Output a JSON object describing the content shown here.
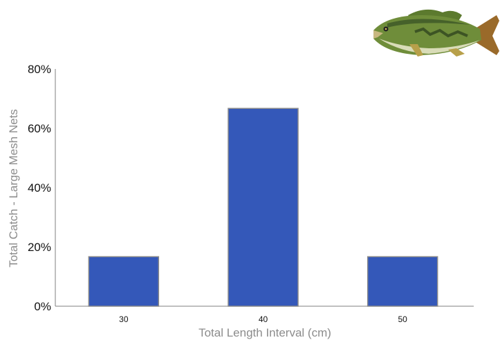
{
  "chart_data": {
    "type": "bar",
    "categories": [
      "30",
      "40",
      "50"
    ],
    "values": [
      16.7,
      66.7,
      16.7
    ],
    "xlabel": "Total Length Interval (cm)",
    "ylabel": "Total Catch - Large Mesh Nets",
    "ylim": [
      0,
      80
    ],
    "yticks": [
      "0%",
      "20%",
      "40%",
      "60%",
      "80%"
    ],
    "ytick_values": [
      0,
      20,
      40,
      60,
      80
    ],
    "grid": false,
    "legend": "none"
  },
  "colors": {
    "bar_fill": "#3458b9",
    "bar_stroke": "#8a8a8a",
    "axis": "#7f7f7f",
    "axis_title": "#8c8c8c"
  },
  "decoration": {
    "image": "largemouth-bass-fish-illustration"
  }
}
